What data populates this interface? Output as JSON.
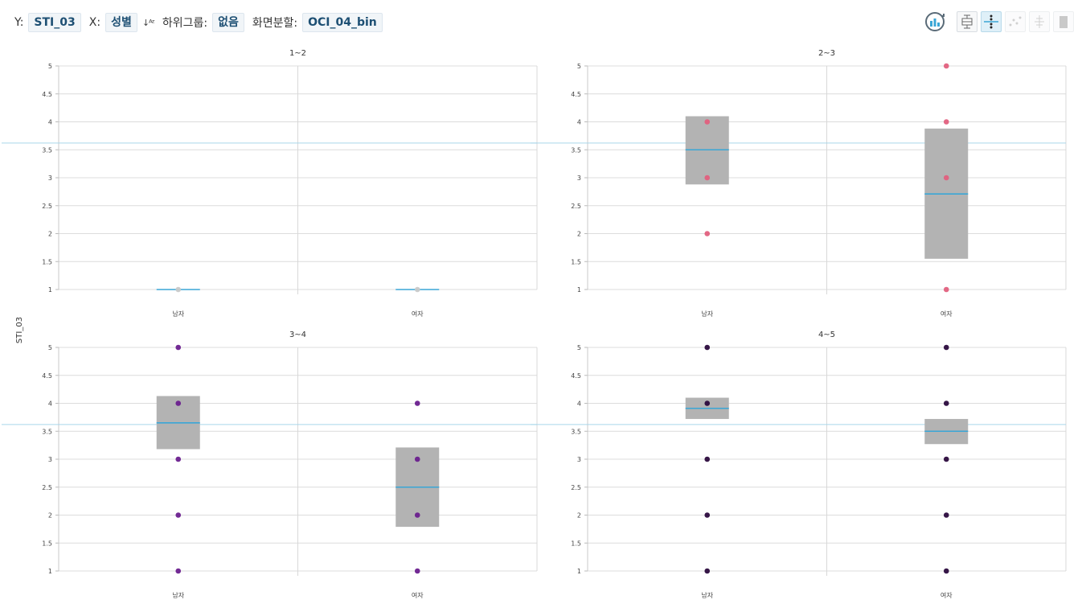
{
  "toolbar": {
    "y_label": "Y:",
    "y_value": "STI_03",
    "x_label": "X:",
    "x_value": "성별",
    "sort_icon": "↓A-Z sort",
    "subgroup_label": "하위그룹:",
    "subgroup_value": "없음",
    "split_label": "화면분할:",
    "split_value": "OCI_04_bin",
    "tools": [
      "refresh-chart-icon",
      "boxplot-icon",
      "mean-line-icon",
      "scatter-icon",
      "distribution-icon",
      "bar-icon"
    ]
  },
  "colors": {
    "box_fill": "#b3b3b3",
    "median_line": "#3aa6d6",
    "reference_line": "#a9d6ea",
    "grid": "#dcdcdc",
    "panel_points": [
      "#c9c9c9",
      "#e2607e",
      "#6a1f8e",
      "#2b0a3d"
    ]
  },
  "chart_data": {
    "type": "boxplot",
    "ylabel": "STI_03",
    "ylim": [
      1,
      5
    ],
    "yticks": [
      1,
      1.5,
      2,
      2.5,
      3,
      3.5,
      4,
      4.5,
      5
    ],
    "reference_y": 3.62,
    "panels": [
      {
        "title": "1~2",
        "categories": [
          "남자",
          "여자"
        ],
        "groups": [
          {
            "name": "남자",
            "q1": 1,
            "q3": 1,
            "median": 1,
            "points": [
              1
            ]
          },
          {
            "name": "여자",
            "q1": 1,
            "q3": 1,
            "median": 1,
            "points": [
              1
            ]
          }
        ]
      },
      {
        "title": "2~3",
        "categories": [
          "남자",
          "여자"
        ],
        "groups": [
          {
            "name": "남자",
            "q1": 2.88,
            "q3": 4.1,
            "median": 3.5,
            "points": [
              2,
              3,
              4
            ]
          },
          {
            "name": "여자",
            "q1": 1.55,
            "q3": 3.88,
            "median": 2.71,
            "points": [
              1,
              3,
              4,
              5
            ]
          }
        ]
      },
      {
        "title": "3~4",
        "categories": [
          "남자",
          "여자"
        ],
        "groups": [
          {
            "name": "남자",
            "q1": 3.18,
            "q3": 4.13,
            "median": 3.65,
            "points": [
              1,
              2,
              3,
              4,
              5
            ]
          },
          {
            "name": "여자",
            "q1": 1.79,
            "q3": 3.21,
            "median": 2.5,
            "points": [
              1,
              2,
              3,
              4
            ]
          }
        ]
      },
      {
        "title": "4~5",
        "categories": [
          "남자",
          "여자"
        ],
        "groups": [
          {
            "name": "남자",
            "q1": 3.72,
            "q3": 4.1,
            "median": 3.91,
            "points": [
              1,
              2,
              3,
              4,
              5
            ]
          },
          {
            "name": "여자",
            "q1": 3.27,
            "q3": 3.72,
            "median": 3.5,
            "points": [
              1,
              2,
              3,
              4,
              5
            ]
          }
        ]
      }
    ]
  }
}
